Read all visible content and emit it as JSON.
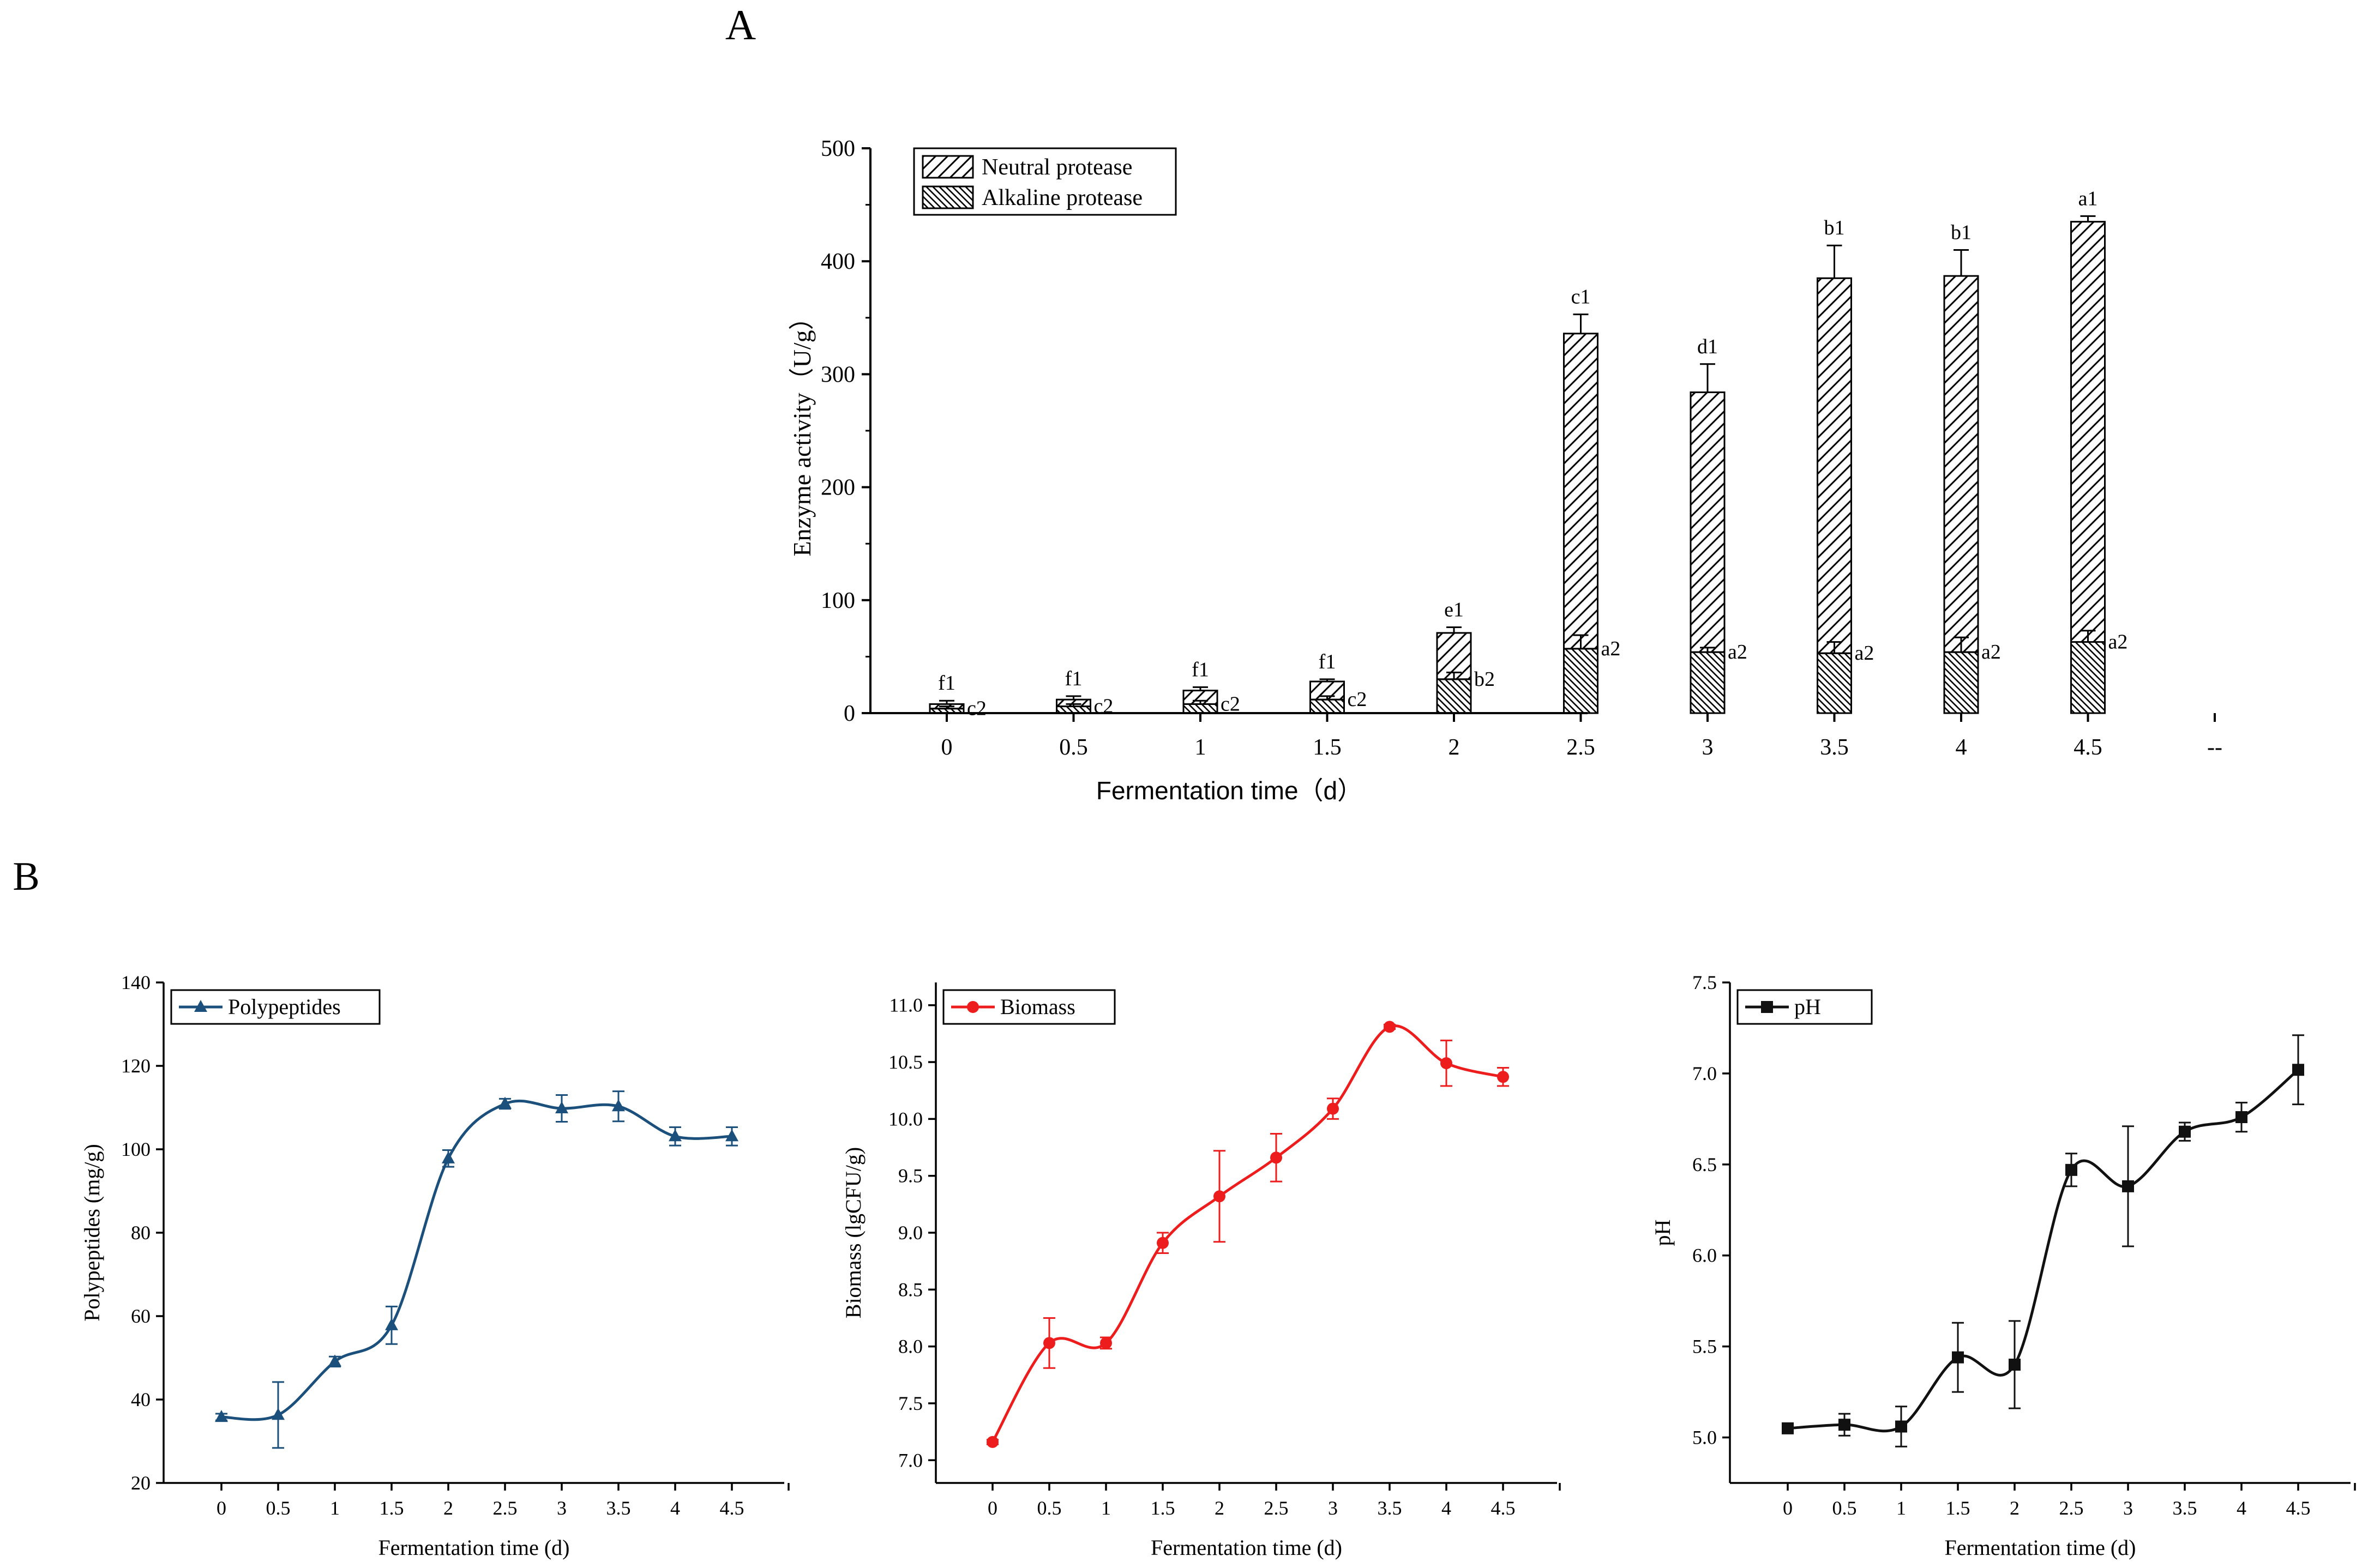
{
  "panel_labels": {
    "a": "A",
    "b": "B"
  },
  "chart_data": [
    {
      "type": "bar",
      "stacked": true,
      "panel": "A",
      "title": "",
      "xlabel": "Fermentation time（d）",
      "ylabel": "Enzyme activity（U/g）",
      "ylim": [
        0,
        500
      ],
      "yticks": [
        "0",
        "100",
        "200",
        "300",
        "400",
        "500"
      ],
      "categories": [
        "0",
        "0.5",
        "1",
        "1.5",
        "2",
        "2.5",
        "3",
        "3.5",
        "4",
        "4.5"
      ],
      "extra_tick_label": "--",
      "legend_position": "top-left",
      "series": [
        {
          "name": "Alkaline protease",
          "pattern": "dense-hatch",
          "values": [
            4,
            6,
            8,
            12,
            30,
            57,
            54,
            53,
            54,
            63
          ],
          "errors": [
            2,
            2,
            3,
            3,
            6,
            12,
            4,
            10,
            13,
            10
          ],
          "letters": [
            "c2",
            "c2",
            "c2",
            "c2",
            "b2",
            "a2",
            "a2",
            "a2",
            "a2",
            "a2"
          ]
        },
        {
          "name": "Neutral protease",
          "pattern": "sparse-hatch",
          "values": [
            4,
            6,
            12,
            16,
            41,
            279,
            230,
            332,
            333,
            372
          ],
          "errors": [
            3,
            3,
            3,
            2,
            5,
            17,
            25,
            29,
            23,
            5
          ],
          "letters": [
            "f1",
            "f1",
            "f1",
            "f1",
            "e1",
            "c1",
            "d1",
            "b1",
            "b1",
            "a1"
          ]
        }
      ]
    },
    {
      "type": "line",
      "panel": "B-1",
      "xlabel": "Fermentation time (d)",
      "ylabel": "Polypeptides (mg/g)",
      "ylim": [
        20,
        140
      ],
      "yticks": [
        "20",
        "40",
        "60",
        "80",
        "100",
        "120",
        "140"
      ],
      "x": [
        "0",
        "0.5",
        "1",
        "1.5",
        "2",
        "2.5",
        "3",
        "3.5",
        "4",
        "4.5"
      ],
      "legend_position": "top-left",
      "color": "#1b4f7c",
      "marker": "triangle",
      "series": [
        {
          "name": "Polypeptides",
          "values": [
            35.8,
            36.3,
            49.1,
            57.8,
            97.8,
            110.9,
            109.8,
            110.3,
            103.1,
            103.1
          ],
          "errors": [
            0.8,
            7.9,
            1.2,
            4.5,
            2.0,
            1.2,
            3.2,
            3.6,
            2.2,
            2.2
          ]
        }
      ]
    },
    {
      "type": "line",
      "panel": "B-2",
      "xlabel": "Fermentation time (d)",
      "ylabel": "Biomass (lgCFU/g)",
      "ylim": [
        6.8,
        11.2
      ],
      "yticks": [
        "7.0",
        "7.5",
        "8.0",
        "8.5",
        "9.0",
        "9.5",
        "10.0",
        "10.5",
        "11.0"
      ],
      "x": [
        "0",
        "0.5",
        "1",
        "1.5",
        "2",
        "2.5",
        "3",
        "3.5",
        "4",
        "4.5"
      ],
      "legend_position": "top-left",
      "color": "#ee1d1d",
      "marker": "circle",
      "series": [
        {
          "name": "Biomass",
          "values": [
            7.16,
            8.03,
            8.03,
            8.91,
            9.32,
            9.66,
            10.09,
            10.81,
            10.49,
            10.37
          ],
          "errors": [
            0.02,
            0.22,
            0.05,
            0.09,
            0.4,
            0.21,
            0.09,
            0.02,
            0.2,
            0.08
          ]
        }
      ]
    },
    {
      "type": "line",
      "panel": "B-3",
      "xlabel": "Fermentation time (d)",
      "ylabel": "pH",
      "ylim": [
        4.75,
        7.5
      ],
      "yticks": [
        "5.0",
        "5.5",
        "6.0",
        "6.5",
        "7.0",
        "7.5"
      ],
      "x": [
        "0",
        "0.5",
        "1",
        "1.5",
        "2",
        "2.5",
        "3",
        "3.5",
        "4",
        "4.5"
      ],
      "legend_position": "top-left",
      "color": "#111111",
      "marker": "square",
      "series": [
        {
          "name": "pH",
          "values": [
            5.05,
            5.07,
            5.06,
            5.44,
            5.4,
            6.47,
            6.38,
            6.68,
            6.76,
            7.02
          ],
          "errors": [
            0.01,
            0.06,
            0.11,
            0.19,
            0.24,
            0.09,
            0.33,
            0.05,
            0.08,
            0.19
          ]
        }
      ]
    }
  ]
}
